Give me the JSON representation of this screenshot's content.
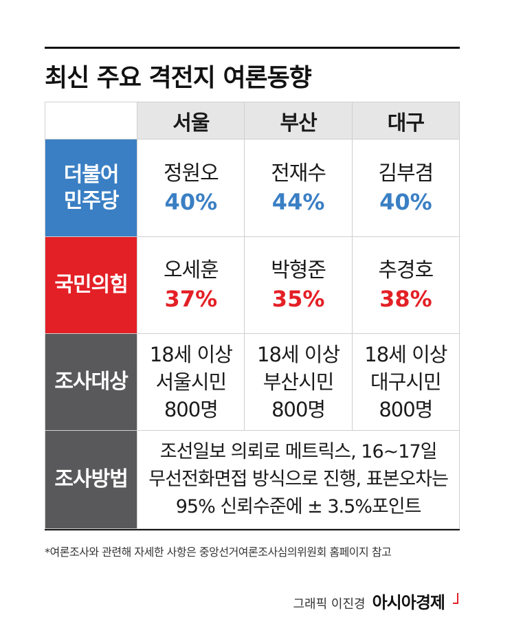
{
  "title": "최신 주요 격전지 여론동향",
  "cities": [
    "서울",
    "부산",
    "대구"
  ],
  "rows": {
    "democratic": {
      "party_line1": "더불어",
      "party_line2": "민주당",
      "color": "#3a7fc4",
      "candidates": [
        {
          "name": "정원오",
          "pct": "40%"
        },
        {
          "name": "전재수",
          "pct": "44%"
        },
        {
          "name": "김부겸",
          "pct": "40%"
        }
      ]
    },
    "ppp": {
      "party": "국민의힘",
      "color": "#e32026",
      "candidates": [
        {
          "name": "오세훈",
          "pct": "37%"
        },
        {
          "name": "박형준",
          "pct": "35%"
        },
        {
          "name": "추경호",
          "pct": "38%"
        }
      ]
    },
    "target": {
      "label": "조사대상",
      "cells": [
        {
          "line1": "18세 이상",
          "line2": "서울시민",
          "line3": "800명"
        },
        {
          "line1": "18세 이상",
          "line2": "부산시민",
          "line3": "800명"
        },
        {
          "line1": "18세 이상",
          "line2": "대구시민",
          "line3": "800명"
        }
      ]
    },
    "method": {
      "label": "조사방법",
      "line1": "조선일보 의뢰로 메트릭스, 16~17일",
      "line2": "무선전화면접 방식으로 진행, 표본오차는",
      "line3": "95% 신뢰수준에 ± 3.5%포인트"
    }
  },
  "footnote": "*여론조사와 관련해 자세한 사항은 중앙선거여론조사심의위원회 홈페이지 참고",
  "credit": {
    "graphic": "그래픽 이진경",
    "brand": "아시아경제"
  }
}
